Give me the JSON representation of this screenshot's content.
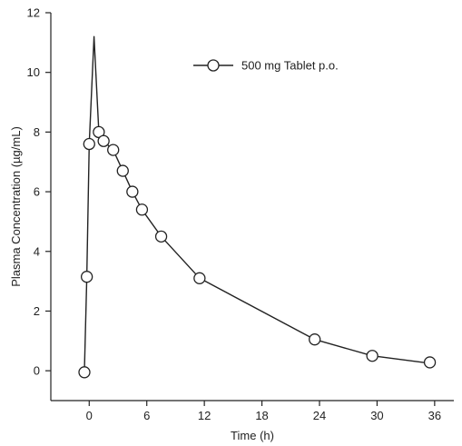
{
  "chart_data": {
    "type": "line",
    "xlabel": "Time (h)",
    "ylabel": "Plasma Concentration (µg/mL)",
    "xlim": [
      -4,
      38
    ],
    "ylim": [
      -1,
      12
    ],
    "x_ticks": [
      0,
      6,
      12,
      18,
      24,
      30,
      36
    ],
    "y_ticks": [
      0,
      2,
      4,
      6,
      8,
      10,
      12
    ],
    "legend_position": "top-right",
    "colors": {
      "line": "#222222",
      "marker_fill": "#ffffff"
    },
    "series": [
      {
        "name": "500 mg Tablet p.o.",
        "line_x": [
          -0.5,
          -0.25,
          0,
          0.5,
          1,
          1.5,
          2.5,
          3.5,
          4.5,
          5.5,
          7.5,
          11.5,
          23.5,
          29.5,
          35.5
        ],
        "line_y": [
          0,
          3.1,
          7.6,
          11.2,
          8.0,
          7.7,
          7.4,
          6.7,
          6.0,
          5.4,
          4.5,
          3.1,
          1.05,
          0.5,
          0.25
        ],
        "marker_x": [
          -0.5,
          -0.25,
          0,
          1,
          1.5,
          2.5,
          3.5,
          4.5,
          5.5,
          7.5,
          11.5,
          23.5,
          29.5,
          35.5
        ],
        "marker_y": [
          -0.05,
          3.15,
          7.6,
          8.0,
          7.7,
          7.4,
          6.7,
          6.0,
          5.4,
          4.5,
          3.1,
          1.05,
          0.5,
          0.28
        ]
      }
    ]
  }
}
